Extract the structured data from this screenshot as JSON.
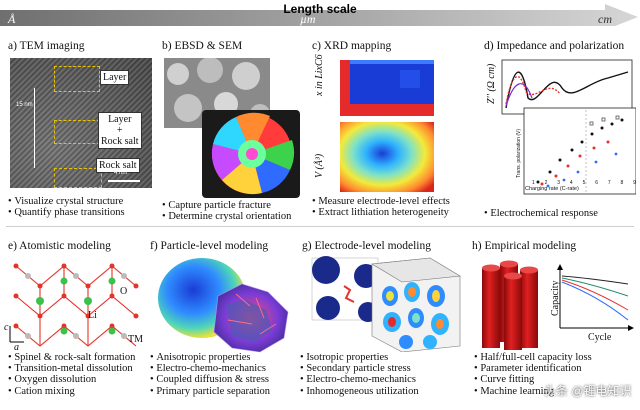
{
  "scale_bar": {
    "title": "Length scale",
    "ticks": [
      "Å",
      "µm",
      "cm"
    ]
  },
  "panels": {
    "a": {
      "title": "a) TEM imaging",
      "labels": {
        "layer": "Layer",
        "layer_plus": "Layer",
        "plus": "+",
        "rock_salt_1": "Rock salt",
        "rock_salt_2": "Rock salt",
        "scale_15": "15 nm",
        "scale_4": "4 nm"
      },
      "bullets": [
        "Visualize crystal structure",
        "Quantify phase transitions"
      ]
    },
    "b": {
      "title": "b) EBSD & SEM",
      "bullets": [
        "Capture particle fracture",
        "Determine crystal orientation"
      ]
    },
    "c": {
      "title": "c) XRD mapping",
      "labels": {
        "y_top": "x in LixC6",
        "y_bottom": "V (Å³)"
      },
      "bullets": [
        "Measure electrode-level effects",
        "Extract lithiation heterogeneity"
      ]
    },
    "d": {
      "title": "d) Impedance and polarization",
      "labels": {
        "z_axis": "Z'' (Ω cm)",
        "inset_y": "Trans. polarization (V)",
        "inset_x": "Charging rate (C-rate)",
        "inset_ticks": [
          "1",
          "2",
          "3",
          "4",
          "5",
          "6",
          "7",
          "8",
          "9"
        ]
      },
      "bullets": [
        "Electrochemical response"
      ]
    },
    "e": {
      "title": "e) Atomistic modeling",
      "labels": {
        "o": "O",
        "li": "Li",
        "tm": "TM",
        "c": "c",
        "a": "a"
      },
      "bullets": [
        "Spinel & rock-salt formation",
        "Transition-metal dissolution",
        "Oxygen dissolution",
        "Cation mixing"
      ]
    },
    "f": {
      "title": "f) Particle-level modeling",
      "bullets": [
        "Anisotropic properties",
        "Electro-chemo-mechanics",
        "Coupled diffusion & stress",
        "Primary particle separation"
      ]
    },
    "g": {
      "title": "g) Electrode-level modeling",
      "bullets": [
        "Isotropic properties",
        "Secondary particle stress",
        "Electro-chemo-mechanics",
        "Inhomogeneous utilization"
      ]
    },
    "h": {
      "title": "h) Empirical modeling",
      "labels": {
        "y_axis": "Capacity",
        "x_axis": "Cycle"
      },
      "bullets": [
        "Half/full-cell capacity loss",
        "Parameter identification",
        "Curve fitting",
        "Machine learning"
      ]
    }
  },
  "watermark": "头条 @锂电知识"
}
